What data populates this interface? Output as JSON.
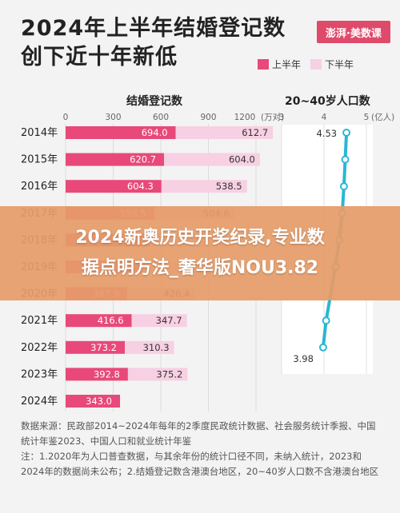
{
  "header": {
    "title_line1": "2024年上半年结婚登记数",
    "title_line2": "创下近十年新低",
    "logo_text": "澎湃·美数课"
  },
  "legend": {
    "first_half": "上半年",
    "second_half": "下半年"
  },
  "colors": {
    "first_half": "#e8497a",
    "second_half": "#f7d0e3",
    "line": "#2ab7d3",
    "dot_dim": "#5aa87a"
  },
  "banner": {
    "line1": "2024新奥历史开奖纪录,专业数",
    "line2": "据点明方法_奢华版NOU3.82"
  },
  "notes": {
    "source": "数据来源：民政部2014~2024年每年的2季度民政统计数据、社会服务统计季报、中国统计年鉴2023、中国人口和就业统计年鉴",
    "note1": "注：1.2020年为人口普查数据，与其余年份的统计口径不同，未纳入统计，2023和2024年的数据尚未公布；2.结婚登记数含港澳台地区，20~40岁人口数不含港澳台地区"
  },
  "chart_data": [
    {
      "type": "bar",
      "title": "结婚登记数",
      "unit": "(万对)",
      "ticks": [
        "0",
        "300",
        "600",
        "900",
        "1200"
      ],
      "xlim": [
        0,
        1200
      ],
      "categories": [
        "2014年",
        "2015年",
        "2016年",
        "2017年",
        "2018年",
        "2019年",
        "2020年",
        "2021年",
        "2022年",
        "2023年",
        "2024年"
      ],
      "series": [
        {
          "name": "上半年",
          "values": [
            694.0,
            620.7,
            604.3,
            558.5,
            533.0,
            487.0,
            387.9,
            416.6,
            373.2,
            392.8,
            343.0
          ],
          "labels": [
            "694.0",
            "620.7",
            "604.3",
            "558.5",
            "",
            "",
            "387.9",
            "416.6",
            "373.2",
            "392.8",
            "343.0"
          ]
        },
        {
          "name": "下半年",
          "values": [
            612.7,
            604.0,
            538.5,
            504.6,
            480.0,
            440.0,
            426.4,
            347.7,
            310.3,
            375.2,
            null
          ],
          "labels": [
            "612.7",
            "604.0",
            "538.5",
            "504.6",
            "",
            "",
            "426.4",
            "347.7",
            "310.3",
            "375.2",
            ""
          ]
        }
      ]
    },
    {
      "type": "line",
      "title": "20~40岁人口数",
      "unit": "(亿人)",
      "ticks": [
        "3",
        "4",
        "5"
      ],
      "xlim": [
        3,
        5
      ],
      "categories": [
        "2014年",
        "2015年",
        "2016年",
        "2017年",
        "2018年",
        "2019年",
        "2020年",
        "2021年",
        "2022年"
      ],
      "values": [
        4.53,
        4.5,
        4.47,
        4.43,
        4.36,
        4.27,
        null,
        4.05,
        3.98
      ],
      "labels": [
        "4.53",
        "",
        "",
        "",
        "",
        "",
        "",
        "",
        "3.98"
      ]
    }
  ]
}
